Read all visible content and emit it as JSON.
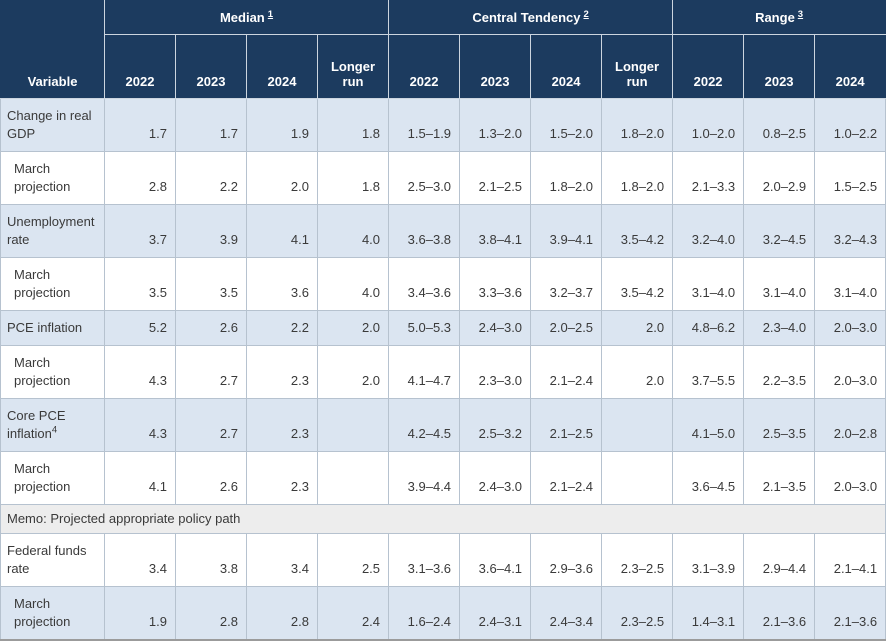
{
  "table": {
    "corner_label": "Variable",
    "groups": [
      {
        "label": "Median",
        "footnote": "1",
        "years": [
          "2022",
          "2023",
          "2024",
          "Longer run"
        ]
      },
      {
        "label": "Central Tendency",
        "footnote": "2",
        "years": [
          "2022",
          "2023",
          "2024",
          "Longer run"
        ]
      },
      {
        "label": "Range",
        "footnote": "3",
        "years": [
          "2022",
          "2023",
          "2024"
        ]
      }
    ],
    "rows": [
      {
        "label": "Change in real GDP",
        "sup": "",
        "indent": false,
        "shaded": true,
        "values": [
          "1.7",
          "1.7",
          "1.9",
          "1.8",
          "1.5–1.9",
          "1.3–2.0",
          "1.5–2.0",
          "1.8–2.0",
          "1.0–2.0",
          "0.8–2.5",
          "1.0–2.2"
        ]
      },
      {
        "label": "March projection",
        "sup": "",
        "indent": true,
        "shaded": false,
        "values": [
          "2.8",
          "2.2",
          "2.0",
          "1.8",
          "2.5–3.0",
          "2.1–2.5",
          "1.8–2.0",
          "1.8–2.0",
          "2.1–3.3",
          "2.0–2.9",
          "1.5–2.5"
        ]
      },
      {
        "label": "Unemployment rate",
        "sup": "",
        "indent": false,
        "shaded": true,
        "values": [
          "3.7",
          "3.9",
          "4.1",
          "4.0",
          "3.6–3.8",
          "3.8–4.1",
          "3.9–4.1",
          "3.5–4.2",
          "3.2–4.0",
          "3.2–4.5",
          "3.2–4.3"
        ]
      },
      {
        "label": "March projection",
        "sup": "",
        "indent": true,
        "shaded": false,
        "values": [
          "3.5",
          "3.5",
          "3.6",
          "4.0",
          "3.4–3.6",
          "3.3–3.6",
          "3.2–3.7",
          "3.5–4.2",
          "3.1–4.0",
          "3.1–4.0",
          "3.1–4.0"
        ]
      },
      {
        "label": "PCE inflation",
        "sup": "",
        "indent": false,
        "shaded": true,
        "values": [
          "5.2",
          "2.6",
          "2.2",
          "2.0",
          "5.0–5.3",
          "2.4–3.0",
          "2.0–2.5",
          "2.0",
          "4.8–6.2",
          "2.3–4.0",
          "2.0–3.0"
        ]
      },
      {
        "label": "March projection",
        "sup": "",
        "indent": true,
        "shaded": false,
        "values": [
          "4.3",
          "2.7",
          "2.3",
          "2.0",
          "4.1–4.7",
          "2.3–3.0",
          "2.1–2.4",
          "2.0",
          "3.7–5.5",
          "2.2–3.5",
          "2.0–3.0"
        ]
      },
      {
        "label": "Core PCE inflation",
        "sup": "4",
        "indent": false,
        "shaded": true,
        "values": [
          "4.3",
          "2.7",
          "2.3",
          "",
          "4.2–4.5",
          "2.5–3.2",
          "2.1–2.5",
          "",
          "4.1–5.0",
          "2.5–3.5",
          "2.0–2.8"
        ]
      },
      {
        "label": "March projection",
        "sup": "",
        "indent": true,
        "shaded": false,
        "values": [
          "4.1",
          "2.6",
          "2.3",
          "",
          "3.9–4.4",
          "2.4–3.0",
          "2.1–2.4",
          "",
          "3.6–4.5",
          "2.1–3.5",
          "2.0–3.0"
        ]
      },
      {
        "type": "memo",
        "label": "Memo: Projected appropriate policy path"
      },
      {
        "label": "Federal funds rate",
        "sup": "",
        "indent": false,
        "shaded": false,
        "values": [
          "3.4",
          "3.8",
          "3.4",
          "2.5",
          "3.1–3.6",
          "3.6–4.1",
          "2.9–3.6",
          "2.3–2.5",
          "3.1–3.9",
          "2.9–4.4",
          "2.1–4.1"
        ]
      },
      {
        "label": "March projection",
        "sup": "",
        "indent": true,
        "shaded": true,
        "values": [
          "1.9",
          "2.8",
          "2.8",
          "2.4",
          "1.6–2.4",
          "2.4–3.1",
          "2.4–3.4",
          "2.3–2.5",
          "1.4–3.1",
          "2.1–3.6",
          "2.1–3.6"
        ]
      }
    ],
    "colors": {
      "header_bg": "#1c3b5f",
      "shaded_row_bg": "#dbe5f1",
      "memo_row_bg": "#ededed",
      "cell_border": "#b6c2cf",
      "table_bottom_border": "#9b9b9b"
    }
  }
}
